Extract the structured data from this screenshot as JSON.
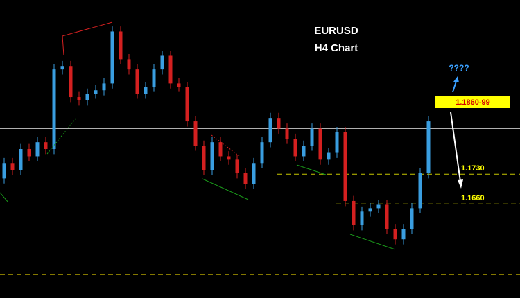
{
  "chart_data": {
    "type": "candlestick",
    "title": "EURUSD",
    "subtitle": "H4 Chart",
    "ylim": [
      1.1439,
      1.2139
    ],
    "up_color": "#3a9ee0",
    "down_color": "#d42020",
    "series": {
      "open": [
        1.172,
        1.1756,
        1.174,
        1.1789,
        1.1772,
        1.1805,
        1.1789,
        1.1976,
        1.1984,
        1.1911,
        1.1903,
        1.1919,
        1.1927,
        1.1943,
        1.2065,
        1.2,
        1.1976,
        1.1919,
        1.1935,
        1.1976,
        1.2008,
        1.1943,
        1.1935,
        1.1854,
        1.1797,
        1.174,
        1.1805,
        1.1772,
        1.1764,
        1.1732,
        1.1707,
        1.1756,
        1.1805,
        1.1862,
        1.1837,
        1.1813,
        1.1772,
        1.1797,
        1.1837,
        1.1764,
        1.178,
        1.1829,
        1.1667,
        1.161,
        1.1642,
        1.165,
        1.1658,
        1.1601,
        1.1577,
        1.1601,
        1.165,
        1.1732
      ],
      "high": [
        1.1768,
        1.1768,
        1.1801,
        1.1801,
        1.1817,
        1.1817,
        1.1988,
        1.1996,
        1.1996,
        1.1923,
        1.1931,
        1.1939,
        1.1955,
        1.2077,
        1.2077,
        1.2012,
        1.1988,
        1.1947,
        1.1988,
        1.202,
        1.202,
        1.1955,
        1.1947,
        1.1866,
        1.1809,
        1.1817,
        1.1817,
        1.1784,
        1.1776,
        1.1744,
        1.1768,
        1.1817,
        1.1874,
        1.1874,
        1.1849,
        1.1825,
        1.1809,
        1.1849,
        1.1849,
        1.1792,
        1.1841,
        1.1841,
        1.1679,
        1.1654,
        1.1662,
        1.167,
        1.167,
        1.1613,
        1.1613,
        1.1662,
        1.1744,
        1.1866
      ],
      "low": [
        1.1708,
        1.1728,
        1.1728,
        1.176,
        1.176,
        1.1777,
        1.1777,
        1.1964,
        1.1899,
        1.1891,
        1.1891,
        1.1907,
        1.1915,
        1.1931,
        1.1988,
        1.1964,
        1.1907,
        1.1907,
        1.1923,
        1.1964,
        1.1931,
        1.1923,
        1.1842,
        1.1785,
        1.1728,
        1.1728,
        1.176,
        1.1752,
        1.172,
        1.1695,
        1.1695,
        1.1744,
        1.1793,
        1.1825,
        1.1801,
        1.176,
        1.176,
        1.1785,
        1.1752,
        1.1752,
        1.1768,
        1.1655,
        1.1598,
        1.1598,
        1.163,
        1.1638,
        1.1589,
        1.1565,
        1.1565,
        1.1589,
        1.1638,
        1.172
      ],
      "close": [
        1.1756,
        1.174,
        1.1789,
        1.1772,
        1.1805,
        1.1789,
        1.1976,
        1.1984,
        1.1911,
        1.1903,
        1.1919,
        1.1927,
        1.1943,
        1.2065,
        1.2,
        1.1976,
        1.1919,
        1.1935,
        1.1976,
        1.2008,
        1.1943,
        1.1935,
        1.1854,
        1.1797,
        1.174,
        1.1805,
        1.1772,
        1.1764,
        1.1732,
        1.1707,
        1.1756,
        1.1805,
        1.1862,
        1.1837,
        1.1813,
        1.1772,
        1.1797,
        1.1837,
        1.1764,
        1.178,
        1.1829,
        1.1667,
        1.161,
        1.1642,
        1.165,
        1.1658,
        1.1601,
        1.1577,
        1.1601,
        1.165,
        1.1732,
        1.1854
      ]
    },
    "levels": [
      {
        "value": 1.1837,
        "color": "#b0b0b0"
      },
      {
        "value": 1.173,
        "label": "1.1730",
        "color": "#c8c800"
      },
      {
        "value": 1.166,
        "label": "1.1660",
        "color": "#c8c800"
      },
      {
        "value": 1.1494,
        "color": "#b0a000"
      }
    ],
    "annotations": {
      "target": "1.1860-99",
      "question": "????"
    }
  }
}
